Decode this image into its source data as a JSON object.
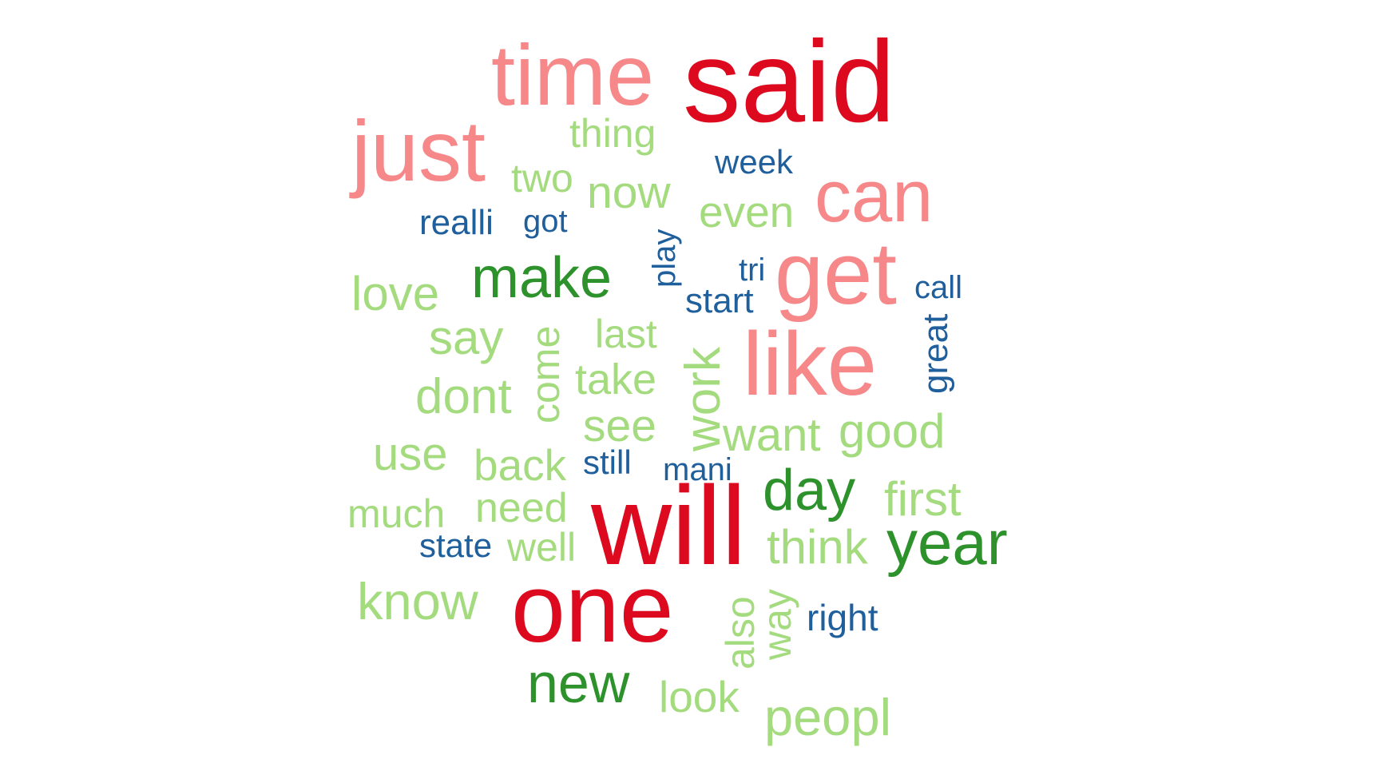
{
  "colors": {
    "tier1": "#dd0a1f",
    "tier2": "#f6888a",
    "tier3": "#2d922c",
    "tier4": "#a4db7e",
    "tier5": "#1f5f9c"
  },
  "words": [
    {
      "text": "said",
      "color": "tier1"
    },
    {
      "text": "will",
      "color": "tier1"
    },
    {
      "text": "one",
      "color": "tier1"
    },
    {
      "text": "time",
      "color": "tier2"
    },
    {
      "text": "just",
      "color": "tier2"
    },
    {
      "text": "can",
      "color": "tier2"
    },
    {
      "text": "get",
      "color": "tier2"
    },
    {
      "text": "like",
      "color": "tier2"
    },
    {
      "text": "make",
      "color": "tier3"
    },
    {
      "text": "day",
      "color": "tier3"
    },
    {
      "text": "year",
      "color": "tier3"
    },
    {
      "text": "new",
      "color": "tier3"
    },
    {
      "text": "thing",
      "color": "tier4"
    },
    {
      "text": "two",
      "color": "tier4"
    },
    {
      "text": "now",
      "color": "tier4"
    },
    {
      "text": "even",
      "color": "tier4"
    },
    {
      "text": "love",
      "color": "tier4"
    },
    {
      "text": "say",
      "color": "tier4"
    },
    {
      "text": "last",
      "color": "tier4"
    },
    {
      "text": "take",
      "color": "tier4"
    },
    {
      "text": "dont",
      "color": "tier4"
    },
    {
      "text": "see",
      "color": "tier4"
    },
    {
      "text": "want",
      "color": "tier4"
    },
    {
      "text": "good",
      "color": "tier4"
    },
    {
      "text": "use",
      "color": "tier4"
    },
    {
      "text": "back",
      "color": "tier4"
    },
    {
      "text": "first",
      "color": "tier4"
    },
    {
      "text": "much",
      "color": "tier4"
    },
    {
      "text": "need",
      "color": "tier4"
    },
    {
      "text": "well",
      "color": "tier4"
    },
    {
      "text": "think",
      "color": "tier4"
    },
    {
      "text": "know",
      "color": "tier4"
    },
    {
      "text": "look",
      "color": "tier4"
    },
    {
      "text": "peopl",
      "color": "tier4"
    },
    {
      "text": "come",
      "color": "tier4"
    },
    {
      "text": "work",
      "color": "tier4"
    },
    {
      "text": "also",
      "color": "tier4"
    },
    {
      "text": "way",
      "color": "tier4"
    },
    {
      "text": "week",
      "color": "tier5"
    },
    {
      "text": "realli",
      "color": "tier5"
    },
    {
      "text": "got",
      "color": "tier5"
    },
    {
      "text": "tri",
      "color": "tier5"
    },
    {
      "text": "call",
      "color": "tier5"
    },
    {
      "text": "start",
      "color": "tier5"
    },
    {
      "text": "still",
      "color": "tier5"
    },
    {
      "text": "mani",
      "color": "tier5"
    },
    {
      "text": "state",
      "color": "tier5"
    },
    {
      "text": "right",
      "color": "tier5"
    },
    {
      "text": "play",
      "color": "tier5"
    },
    {
      "text": "great",
      "color": "tier5"
    }
  ]
}
